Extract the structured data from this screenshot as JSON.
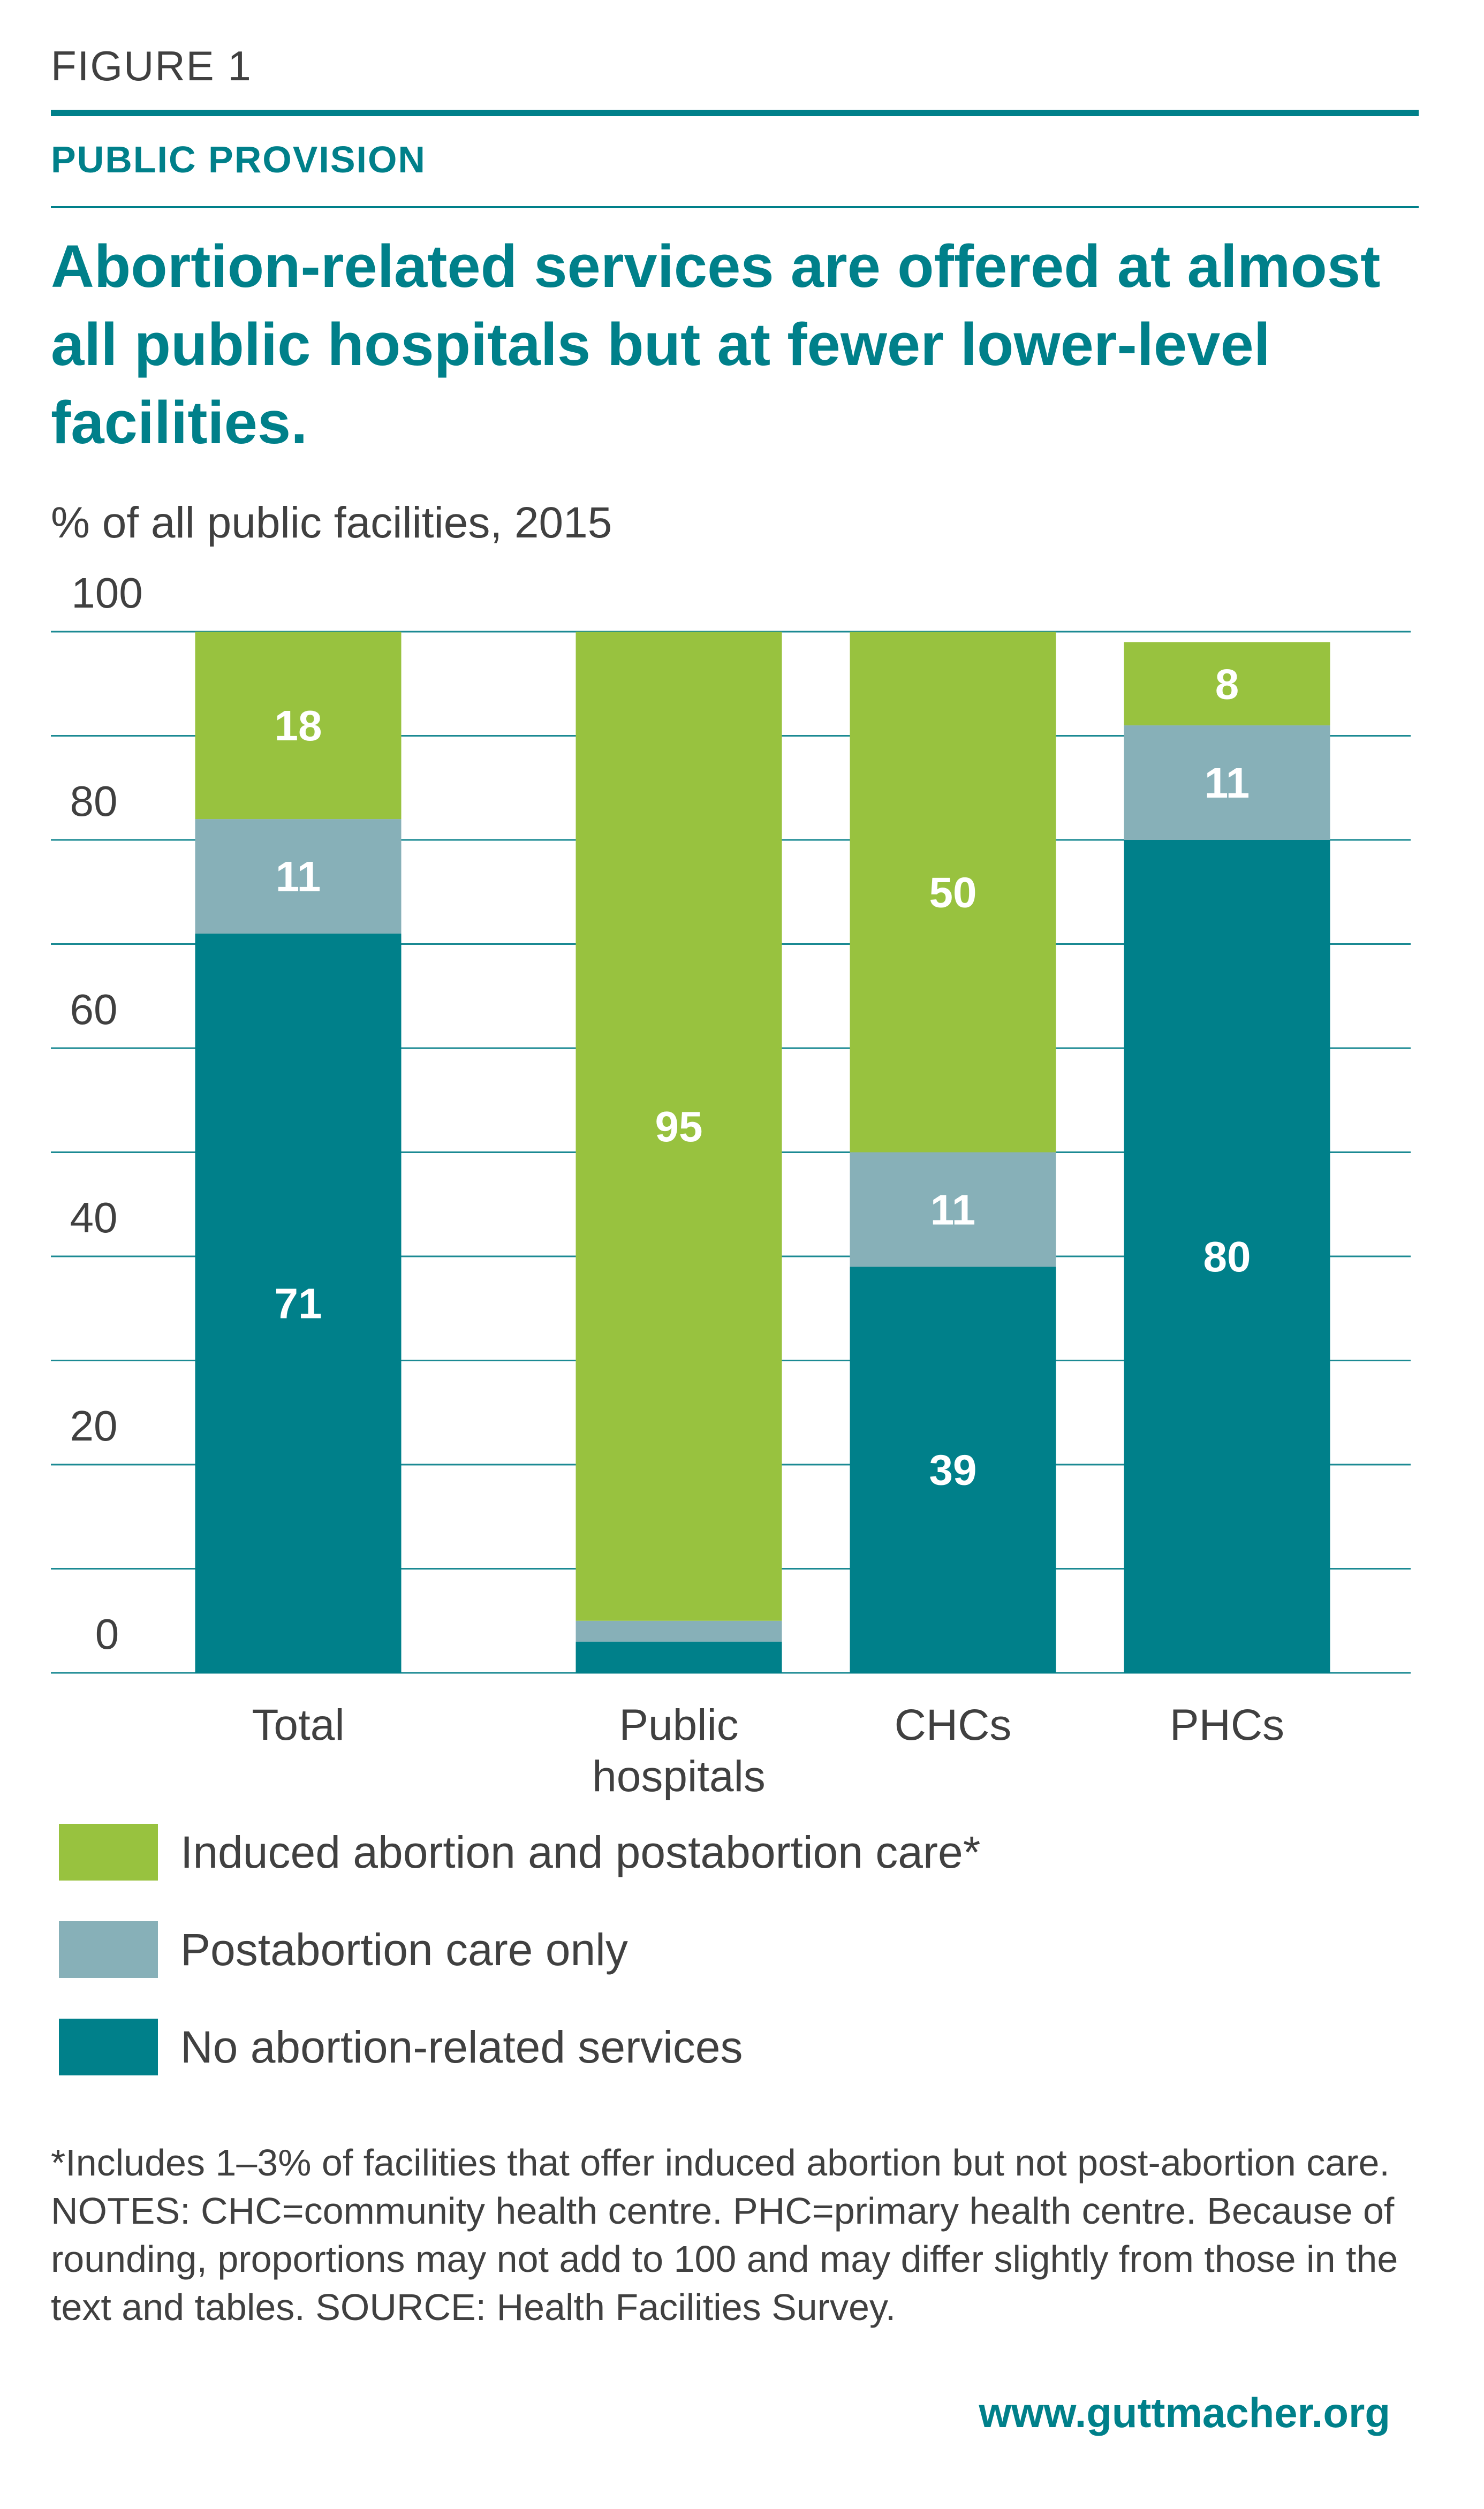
{
  "header": {
    "figure_label": "FIGURE 1",
    "kicker": "PUBLIC PROVISION",
    "title": "Abortion-related services are offered at almost all public hospitals but at fewer lower-level facilities.",
    "unit_label": "% of all public facilities, 2015"
  },
  "colors": {
    "accent": "#00808a",
    "induced": "#98c23f",
    "postabortion": "#87b0b8",
    "none": "#00808a",
    "grid": "#1b8a93"
  },
  "chart_data": {
    "type": "bar",
    "stacked": true,
    "categories": [
      "Total",
      "Public\nhospitals",
      "CHCs",
      "PHCs"
    ],
    "series": [
      {
        "name": "No abortion-related services",
        "color": "#00808a",
        "values": [
          71,
          3,
          39,
          80
        ],
        "labels": [
          "71",
          "",
          "39",
          "80"
        ]
      },
      {
        "name": "Postabortion care only",
        "color": "#87b0b8",
        "values": [
          11,
          2,
          11,
          11
        ],
        "labels": [
          "11",
          "",
          "11",
          "11"
        ]
      },
      {
        "name": "Induced abortion and postabortion care*",
        "color": "#98c23f",
        "values": [
          18,
          95,
          50,
          8
        ],
        "labels": [
          "18",
          "95",
          "50",
          "8"
        ]
      }
    ],
    "ylim": [
      0,
      100
    ],
    "yticks": [
      0,
      20,
      40,
      60,
      80,
      100
    ],
    "grid": true,
    "legend_position": "bottom"
  },
  "legend": [
    {
      "label": "Induced abortion and postabortion care*",
      "color": "#98c23f"
    },
    {
      "label": "Postabortion care only",
      "color": "#87b0b8"
    },
    {
      "label": "No abortion-related services",
      "color": "#00808a"
    }
  ],
  "notes": "*Includes 1–3% of facilities that offer induced abortion but not post-abortion care. NOTES: CHC=community health centre. PHC=primary health centre. Because of rounding, proportions may not add to 100 and may differ slightly from those in the text and tables. SOURCE: Health Facilities Survey.",
  "footer": "www.guttmacher.org"
}
